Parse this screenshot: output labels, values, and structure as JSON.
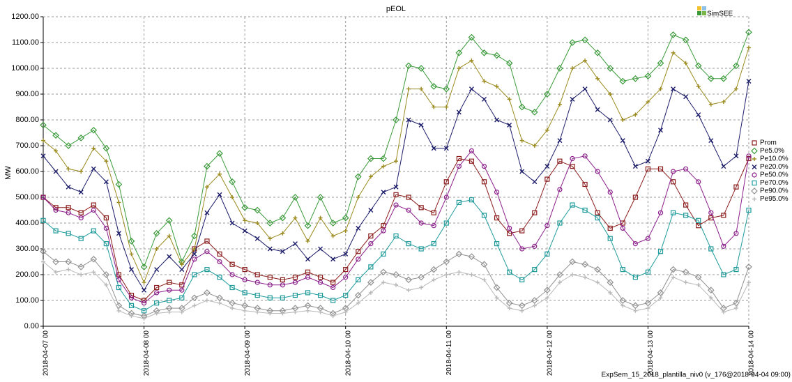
{
  "chart_data": {
    "type": "line",
    "title": "pEOL",
    "ylabel": "MW",
    "logo": "SimSEE",
    "footer": "ExpSem_15_2018_plantilla_niv0 (v_176@2018-04-04 09:00)",
    "grid": true,
    "legend": "right",
    "x": [
      0,
      3,
      6,
      9,
      12,
      15,
      18,
      21,
      24,
      27,
      30,
      33,
      36,
      39,
      42,
      45,
      48,
      51,
      54,
      57,
      60,
      63,
      66,
      69,
      72,
      75,
      78,
      81,
      84,
      87,
      90,
      93,
      96,
      99,
      102,
      105,
      108,
      111,
      114,
      117,
      120,
      123,
      126,
      129,
      132,
      135,
      138,
      141,
      144,
      147,
      150,
      153,
      156,
      159,
      162,
      165,
      168
    ],
    "xlim": [
      0,
      168
    ],
    "xticks": [
      {
        "value": 0,
        "label": "2018-04-07 00"
      },
      {
        "value": 24,
        "label": "2018-04-08 00"
      },
      {
        "value": 48,
        "label": "2018-04-09 00"
      },
      {
        "value": 72,
        "label": "2018-04-10 00"
      },
      {
        "value": 96,
        "label": "2018-04-11 00"
      },
      {
        "value": 120,
        "label": "2018-04-12 00"
      },
      {
        "value": 144,
        "label": "2018-04-13 00"
      },
      {
        "value": 168,
        "label": "2018-04-14 00"
      }
    ],
    "ylim": [
      0,
      1200
    ],
    "yticks": [
      {
        "value": 0,
        "label": "0.00"
      },
      {
        "value": 100,
        "label": "100.00"
      },
      {
        "value": 200,
        "label": "200.00"
      },
      {
        "value": 300,
        "label": "300.00"
      },
      {
        "value": 400,
        "label": "400.00"
      },
      {
        "value": 500,
        "label": "500.00"
      },
      {
        "value": 600,
        "label": "600.00"
      },
      {
        "value": 700,
        "label": "700.00"
      },
      {
        "value": 800,
        "label": "800.00"
      },
      {
        "value": 900,
        "label": "900.00"
      },
      {
        "value": 1000,
        "label": "1000.00"
      },
      {
        "value": 1100,
        "label": "1100.00"
      },
      {
        "value": 1200,
        "label": "1200.00"
      }
    ],
    "series": [
      {
        "name": "Prom",
        "color": "#8b1c1c",
        "marker": "square",
        "values": [
          500,
          460,
          460,
          440,
          470,
          420,
          200,
          120,
          100,
          150,
          170,
          160,
          300,
          330,
          280,
          240,
          220,
          200,
          190,
          180,
          190,
          210,
          190,
          170,
          220,
          290,
          350,
          390,
          510,
          500,
          460,
          440,
          560,
          650,
          640,
          560,
          420,
          360,
          370,
          440,
          570,
          640,
          620,
          550,
          440,
          380,
          400,
          500,
          610,
          610,
          560,
          470,
          390,
          420,
          430,
          540,
          650
        ]
      },
      {
        "name": "Pe5.0%",
        "color": "#3a9a3a",
        "marker": "diamond",
        "values": [
          780,
          740,
          700,
          730,
          760,
          690,
          550,
          330,
          230,
          360,
          410,
          250,
          350,
          620,
          670,
          560,
          460,
          450,
          400,
          420,
          500,
          390,
          500,
          400,
          420,
          580,
          650,
          650,
          800,
          1010,
          1000,
          930,
          920,
          1060,
          1120,
          1060,
          1050,
          1020,
          850,
          830,
          900,
          1000,
          1100,
          1110,
          1060,
          1000,
          950,
          960,
          970,
          1020,
          1130,
          1110,
          1010,
          960,
          960,
          1010,
          1140
        ]
      },
      {
        "name": "Pe10.0%",
        "color": "#9a8a1e",
        "marker": "plus",
        "values": [
          720,
          680,
          610,
          600,
          690,
          640,
          480,
          280,
          170,
          300,
          350,
          240,
          300,
          540,
          590,
          500,
          410,
          400,
          340,
          360,
          420,
          330,
          420,
          350,
          370,
          500,
          580,
          620,
          640,
          920,
          920,
          850,
          850,
          1000,
          1030,
          950,
          930,
          880,
          720,
          700,
          760,
          860,
          1000,
          1030,
          960,
          900,
          800,
          820,
          870,
          920,
          1060,
          1020,
          930,
          860,
          870,
          920,
          1080
        ]
      },
      {
        "name": "Pe20.0%",
        "color": "#1c1c6a",
        "marker": "cross",
        "values": [
          660,
          600,
          540,
          520,
          610,
          560,
          360,
          220,
          140,
          220,
          270,
          220,
          280,
          440,
          510,
          400,
          370,
          340,
          300,
          290,
          320,
          260,
          300,
          260,
          280,
          380,
          450,
          520,
          540,
          800,
          780,
          690,
          690,
          830,
          920,
          880,
          800,
          780,
          600,
          560,
          620,
          720,
          880,
          920,
          840,
          800,
          720,
          620,
          640,
          760,
          920,
          890,
          820,
          720,
          620,
          660,
          950
        ]
      },
      {
        "name": "Pe50.0%",
        "color": "#8a1e8a",
        "marker": "circle",
        "values": [
          500,
          450,
          440,
          420,
          450,
          380,
          180,
          110,
          90,
          130,
          140,
          140,
          260,
          290,
          250,
          200,
          180,
          170,
          160,
          160,
          170,
          190,
          170,
          150,
          190,
          260,
          320,
          370,
          470,
          450,
          400,
          390,
          500,
          620,
          680,
          620,
          520,
          380,
          300,
          310,
          390,
          530,
          650,
          660,
          600,
          520,
          380,
          320,
          340,
          440,
          600,
          610,
          560,
          440,
          310,
          360,
          660
        ]
      },
      {
        "name": "Pe70.0%",
        "color": "#1e9a9a",
        "marker": "square",
        "values": [
          410,
          370,
          360,
          340,
          370,
          320,
          150,
          80,
          60,
          90,
          100,
          110,
          200,
          220,
          190,
          150,
          130,
          120,
          110,
          110,
          120,
          130,
          120,
          100,
          120,
          180,
          230,
          280,
          350,
          320,
          300,
          320,
          400,
          480,
          490,
          430,
          320,
          210,
          180,
          220,
          280,
          400,
          470,
          450,
          420,
          340,
          220,
          190,
          210,
          290,
          440,
          430,
          410,
          300,
          200,
          220,
          450
        ]
      },
      {
        "name": "Pe90.0%",
        "color": "#909090",
        "marker": "diamond",
        "values": [
          290,
          250,
          250,
          230,
          260,
          200,
          80,
          50,
          40,
          60,
          70,
          70,
          110,
          130,
          110,
          90,
          80,
          70,
          60,
          60,
          70,
          80,
          70,
          50,
          70,
          120,
          170,
          210,
          200,
          180,
          190,
          220,
          250,
          280,
          270,
          240,
          150,
          90,
          80,
          100,
          140,
          200,
          250,
          240,
          220,
          170,
          100,
          80,
          90,
          130,
          220,
          210,
          190,
          140,
          70,
          90,
          230
        ]
      },
      {
        "name": "Pe95.0%",
        "color": "#b8b8b8",
        "marker": "plus",
        "values": [
          250,
          210,
          220,
          200,
          210,
          160,
          60,
          40,
          30,
          50,
          55,
          55,
          80,
          100,
          90,
          70,
          60,
          55,
          50,
          50,
          55,
          60,
          55,
          40,
          55,
          90,
          130,
          170,
          160,
          140,
          150,
          180,
          200,
          210,
          200,
          180,
          110,
          70,
          60,
          80,
          110,
          170,
          200,
          190,
          170,
          130,
          80,
          60,
          70,
          110,
          190,
          170,
          160,
          110,
          55,
          70,
          170
        ]
      }
    ]
  }
}
